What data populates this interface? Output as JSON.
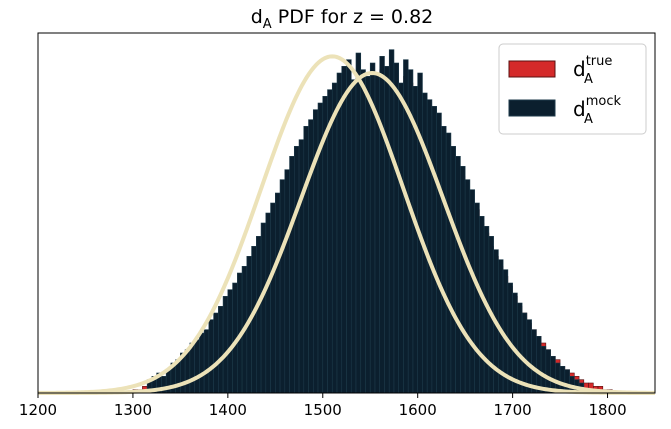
{
  "chart_data": {
    "type": "bar",
    "title": {
      "main": "d",
      "subscript": "A",
      "rest": " PDF for z = 0.82"
    },
    "xlabel": "",
    "ylabel": "",
    "xlim": [
      1200,
      1850
    ],
    "xticks": [
      "1200",
      "1300",
      "1400",
      "1500",
      "1600",
      "1700",
      "1800"
    ],
    "ylim": [
      0,
      1.08
    ],
    "yticks_visible": false,
    "grid": false,
    "legend": {
      "position": "top-right",
      "entries": [
        {
          "base": "d",
          "sub": "A",
          "sup": "true",
          "color": "#d42a2a"
        },
        {
          "base": "d",
          "sub": "A",
          "sup": "mock",
          "color": "#0b1f2e"
        }
      ]
    },
    "series": [
      {
        "legend_index": 0,
        "kind": "histogram",
        "color": "#d42a2a",
        "edgecolor": "#5a1010",
        "bin_start": 1300,
        "bin_width": 5,
        "counts": [
          0.01,
          0.01,
          0.02,
          0.01,
          0.02,
          0.03,
          0.03,
          0.04,
          0.05,
          0.05,
          0.06,
          0.07,
          0.08,
          0.1,
          0.11,
          0.12,
          0.13,
          0.15,
          0.17,
          0.19,
          0.2,
          0.23,
          0.25,
          0.27,
          0.29,
          0.32,
          0.35,
          0.38,
          0.4,
          0.43,
          0.46,
          0.49,
          0.52,
          0.55,
          0.58,
          0.61,
          0.63,
          0.67,
          0.7,
          0.72,
          0.75,
          0.78,
          0.8,
          0.83,
          0.85,
          0.87,
          0.89,
          0.91,
          0.93,
          0.9,
          0.92,
          0.96,
          0.97,
          0.94,
          0.98,
          0.96,
          0.91,
          0.95,
          0.93,
          0.88,
          0.85,
          0.86,
          0.83,
          0.83,
          0.79,
          0.75,
          0.74,
          0.7,
          0.68,
          0.65,
          0.6,
          0.57,
          0.55,
          0.51,
          0.48,
          0.44,
          0.41,
          0.38,
          0.35,
          0.32,
          0.29,
          0.26,
          0.24,
          0.21,
          0.19,
          0.17,
          0.15,
          0.13,
          0.11,
          0.1,
          0.08,
          0.07,
          0.06,
          0.05,
          0.04,
          0.03,
          0.03,
          0.02,
          0.02,
          0.01,
          0.01
        ]
      },
      {
        "legend_index": 1,
        "kind": "histogram",
        "color": "#0b1f2e",
        "edgecolor": "#1d3a4a",
        "bin_start": 1315,
        "bin_width": 5,
        "counts": [
          0.04,
          0.05,
          0.06,
          0.05,
          0.07,
          0.09,
          0.1,
          0.12,
          0.13,
          0.15,
          0.16,
          0.18,
          0.19,
          0.22,
          0.24,
          0.26,
          0.29,
          0.31,
          0.33,
          0.36,
          0.38,
          0.41,
          0.44,
          0.47,
          0.51,
          0.54,
          0.57,
          0.6,
          0.64,
          0.67,
          0.71,
          0.74,
          0.76,
          0.8,
          0.82,
          0.85,
          0.87,
          0.89,
          0.91,
          0.93,
          0.96,
          0.98,
          1.0,
          0.94,
          1.02,
          0.97,
          0.95,
          0.99,
          0.96,
          1.01,
          0.98,
          1.03,
          0.99,
          0.93,
          1.0,
          0.97,
          0.92,
          0.96,
          0.9,
          0.88,
          0.86,
          0.84,
          0.8,
          0.78,
          0.74,
          0.71,
          0.68,
          0.64,
          0.61,
          0.57,
          0.53,
          0.5,
          0.47,
          0.43,
          0.4,
          0.37,
          0.33,
          0.3,
          0.27,
          0.24,
          0.22,
          0.19,
          0.17,
          0.14,
          0.13,
          0.11,
          0.09,
          0.08,
          0.07,
          0.05,
          0.04,
          0.03
        ]
      }
    ],
    "fits": [
      {
        "kind": "gaussian-fit",
        "mean": 1552,
        "sigma": 75,
        "peak": 0.96,
        "color": "#ece2b8"
      },
      {
        "kind": "gaussian-fit",
        "mean": 1510,
        "sigma": 75,
        "peak": 1.01,
        "color": "#ece2b8"
      }
    ]
  }
}
